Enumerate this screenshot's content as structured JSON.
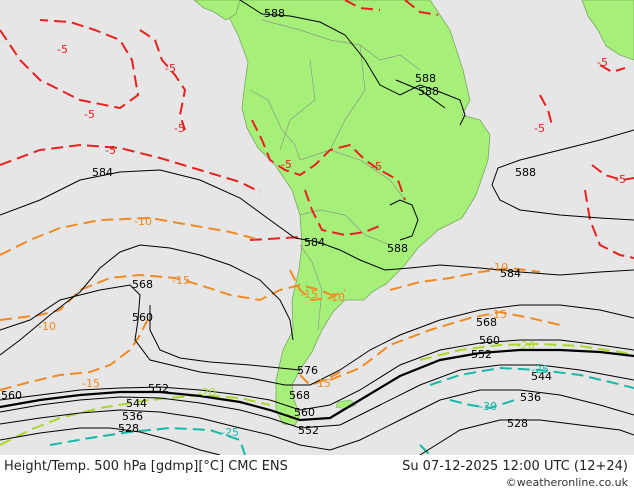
{
  "footer": {
    "title": "Height/Temp. 500 hPa [gdmp][°C] CMC ENS",
    "datetime": "Su 07-12-2025 12:00 UTC (12+24)",
    "credit": "©weatheronline.co.uk"
  },
  "colors": {
    "ocean": "#e6e6e6",
    "land": "#a6f07a",
    "height_contour": "#000000",
    "temp_minus5": "#e8201f",
    "temp_minus10_minus15": "#f08a22",
    "temp_minus20": "#a8d82c",
    "temp_minus25_minus30": "#16b8a8"
  },
  "height_labels": [
    {
      "id": "h588-top",
      "text": "588"
    },
    {
      "id": "h588-ne1",
      "text": "588"
    },
    {
      "id": "h588-ne2",
      "text": "588"
    },
    {
      "id": "h588-east",
      "text": "588"
    },
    {
      "id": "h588-mid",
      "text": "588"
    },
    {
      "id": "h584-west",
      "text": "584"
    },
    {
      "id": "h584-mid",
      "text": "584"
    },
    {
      "id": "h584-east",
      "text": "584"
    },
    {
      "id": "h576",
      "text": "576"
    },
    {
      "id": "h568-west",
      "text": "568"
    },
    {
      "id": "h568-south",
      "text": "568"
    },
    {
      "id": "h568-east",
      "text": "568"
    },
    {
      "id": "h560-west",
      "text": "560"
    },
    {
      "id": "h560-farwest",
      "text": "560"
    },
    {
      "id": "h560-south",
      "text": "560"
    },
    {
      "id": "h560-east",
      "text": "560"
    },
    {
      "id": "h552-west",
      "text": "552"
    },
    {
      "id": "h552-south",
      "text": "552"
    },
    {
      "id": "h552-east",
      "text": "552"
    },
    {
      "id": "h544-west",
      "text": "544"
    },
    {
      "id": "h544-east",
      "text": "544"
    },
    {
      "id": "h536-west",
      "text": "536"
    },
    {
      "id": "h536-east",
      "text": "536"
    },
    {
      "id": "h528-west",
      "text": "528"
    },
    {
      "id": "h528-east",
      "text": "528"
    }
  ],
  "temp_labels": [
    {
      "id": "t-5a",
      "text": "-5"
    },
    {
      "id": "t-5b",
      "text": "-5"
    },
    {
      "id": "t-5c",
      "text": "-5"
    },
    {
      "id": "t-5d",
      "text": "-5"
    },
    {
      "id": "t-5e",
      "text": "-5"
    },
    {
      "id": "t-5f",
      "text": "-5"
    },
    {
      "id": "t-5g",
      "text": "-5"
    },
    {
      "id": "t-5h",
      "text": "-5"
    },
    {
      "id": "t-5i",
      "text": "-5"
    },
    {
      "id": "t-5j",
      "text": "-5"
    },
    {
      "id": "t-10a",
      "text": "-10"
    },
    {
      "id": "t-10b",
      "text": "-10"
    },
    {
      "id": "t-10c",
      "text": "-10"
    },
    {
      "id": "t-10d",
      "text": "-10"
    },
    {
      "id": "t-15a",
      "text": "-15"
    },
    {
      "id": "t-15b",
      "text": "-15"
    },
    {
      "id": "t-15c",
      "text": "-15"
    },
    {
      "id": "t-15d",
      "text": "-15"
    },
    {
      "id": "t-15e",
      "text": "-15"
    },
    {
      "id": "t-20a",
      "text": "-20"
    },
    {
      "id": "t-20b",
      "text": "-20"
    },
    {
      "id": "t-25a",
      "text": "-25"
    },
    {
      "id": "t-25b",
      "text": "-25"
    },
    {
      "id": "t-30a",
      "text": "-30"
    }
  ]
}
